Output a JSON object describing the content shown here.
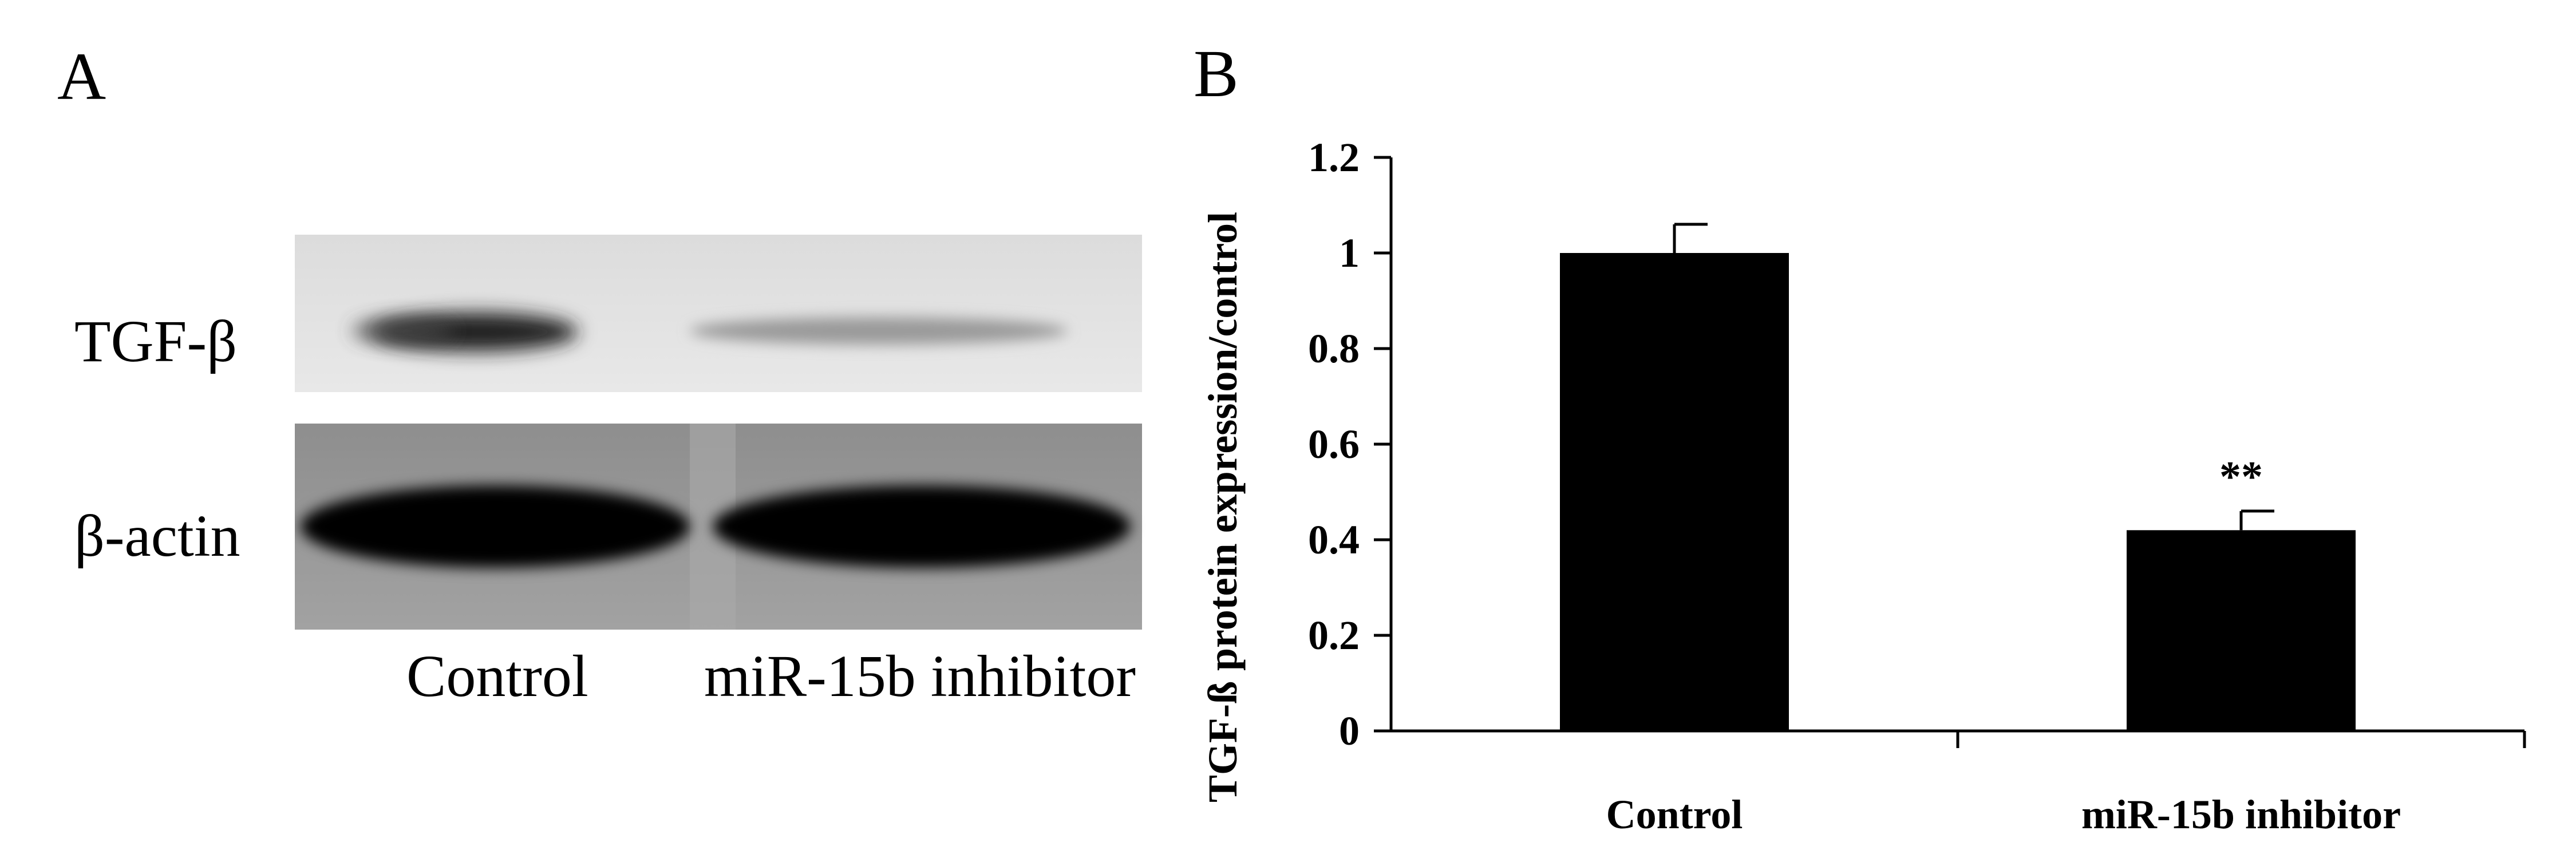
{
  "panelA": {
    "letter": "A",
    "rows": [
      "TGF-β",
      "β-actin"
    ],
    "lanes": [
      "Control",
      "miR-15b inhibitor"
    ]
  },
  "panelB": {
    "letter": "B"
  },
  "chart_data": {
    "type": "bar",
    "categories": [
      "Control",
      "miR-15b inhibitor"
    ],
    "values": [
      1.0,
      0.42
    ],
    "errors": [
      0.06,
      0.04
    ],
    "annotations": [
      "",
      "**"
    ],
    "ylabel": "TGF-ß protein expression/control",
    "xlabel": "",
    "ylim": [
      0,
      1.2
    ],
    "yticks": [
      "0",
      "0.2",
      "0.4",
      "0.6",
      "0.8",
      "1",
      "1.2"
    ],
    "bar_color": "#000000",
    "grid": false
  }
}
